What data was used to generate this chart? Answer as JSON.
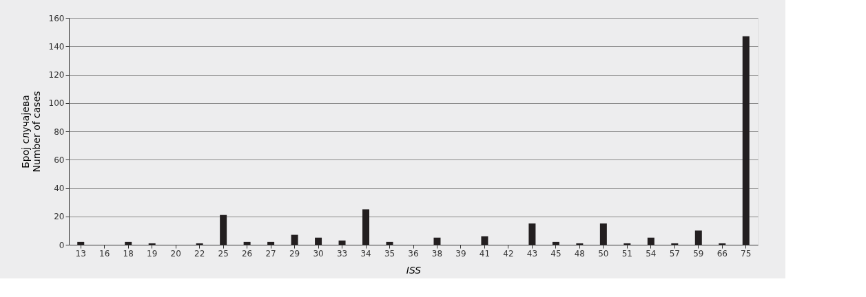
{
  "chart_data": {
    "type": "bar",
    "xlabel": "ISS",
    "ylabel": "Број случајева\nNumber of cases",
    "categories": [
      "13",
      "16",
      "18",
      "19",
      "20",
      "22",
      "25",
      "26",
      "27",
      "29",
      "30",
      "33",
      "34",
      "35",
      "36",
      "38",
      "39",
      "41",
      "42",
      "43",
      "45",
      "48",
      "50",
      "51",
      "54",
      "57",
      "59",
      "66",
      "75"
    ],
    "values": [
      2,
      0,
      2,
      1,
      0,
      1,
      21,
      2,
      2,
      7,
      5,
      3,
      25,
      2,
      0,
      5,
      0,
      6,
      0,
      15,
      2,
      1,
      15,
      1,
      5,
      1,
      10,
      1,
      147
    ],
    "color": "#231f20",
    "ylim": [
      0,
      160
    ],
    "yticks": [
      0,
      20,
      40,
      60,
      80,
      100,
      120,
      140,
      160
    ],
    "grid": "y"
  }
}
